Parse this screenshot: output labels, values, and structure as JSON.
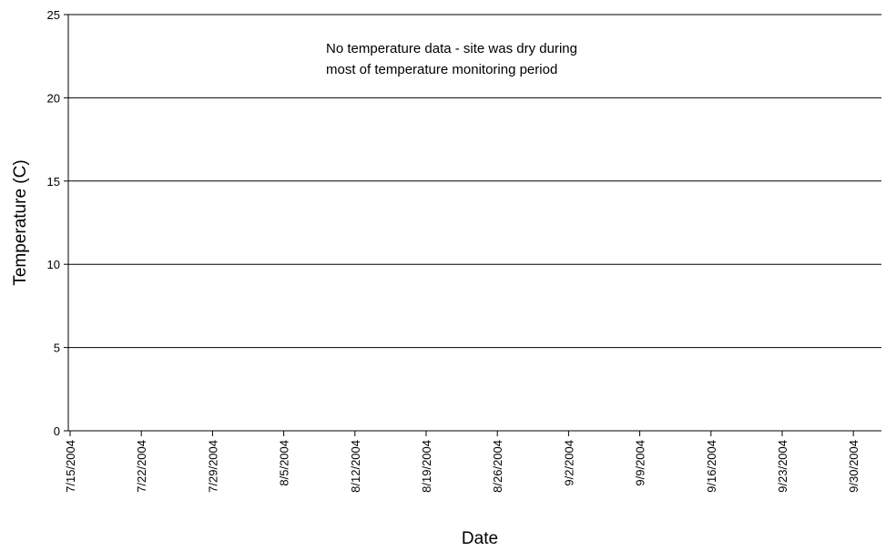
{
  "chart_data": {
    "type": "line",
    "title": "",
    "xlabel": "Date",
    "ylabel": "Temperature (C)",
    "ylim": [
      0,
      25
    ],
    "yticks": [
      "0",
      "5",
      "10",
      "15",
      "20",
      "25"
    ],
    "categories": [
      "7/15/2004",
      "7/22/2004",
      "7/29/2004",
      "8/5/2004",
      "8/12/2004",
      "8/19/2004",
      "8/26/2004",
      "9/2/2004",
      "9/9/2004",
      "9/16/2004",
      "9/23/2004",
      "9/30/2004"
    ],
    "series": [],
    "grid": "horizontal",
    "legend": "none",
    "annotation": {
      "line1": "No temperature data - site was dry during",
      "line2": "most of temperature monitoring period"
    }
  }
}
